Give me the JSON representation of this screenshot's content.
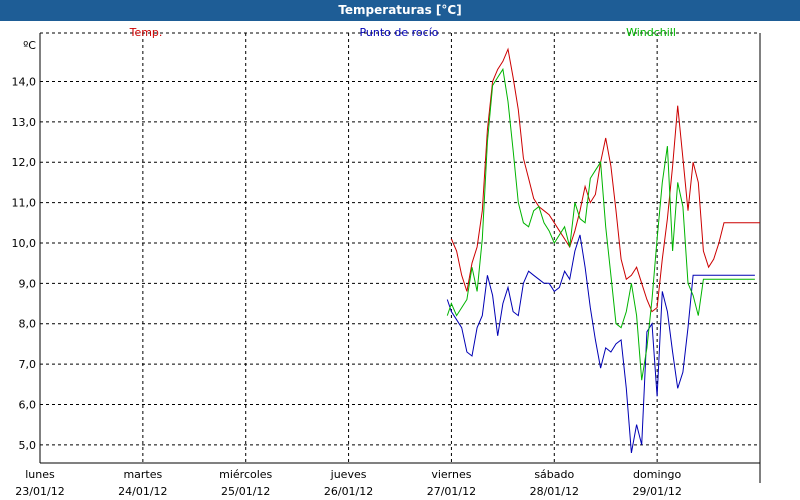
{
  "window": {
    "title": "Temperaturas [°C]"
  },
  "chart_data": {
    "type": "line",
    "title": "Temperaturas [°C]",
    "ylabel": "ºC",
    "ylim": [
      4.55,
      15.2
    ],
    "y_ticks": [
      "5,0",
      "6,0",
      "7,0",
      "8,0",
      "9,0",
      "10,0",
      "11,0",
      "12,0",
      "13,0",
      "14,0"
    ],
    "y_tick_values": [
      5,
      6,
      7,
      8,
      9,
      10,
      11,
      12,
      13,
      14
    ],
    "x_range_days": [
      0,
      7
    ],
    "x_ticks": [
      {
        "day": "lunes",
        "date": "23/01/12"
      },
      {
        "day": "martes",
        "date": "24/01/12"
      },
      {
        "day": "miércoles",
        "date": "25/01/12"
      },
      {
        "day": "jueves",
        "date": "26/01/12"
      },
      {
        "day": "viernes",
        "date": "27/01/12"
      },
      {
        "day": "sábado",
        "date": "28/01/12"
      },
      {
        "day": "domingo",
        "date": "29/01/12"
      }
    ],
    "grid": true,
    "legend_position": "top",
    "series": [
      {
        "name": "Temp.",
        "color": "#cc0000",
        "x": [
          4.0,
          4.05,
          4.1,
          4.15,
          4.2,
          4.25,
          4.3,
          4.35,
          4.4,
          4.45,
          4.5,
          4.55,
          4.6,
          4.65,
          4.7,
          4.75,
          4.8,
          4.85,
          4.9,
          4.95,
          5.0,
          5.05,
          5.1,
          5.15,
          5.2,
          5.25,
          5.3,
          5.35,
          5.4,
          5.45,
          5.5,
          5.55,
          5.6,
          5.65,
          5.7,
          5.75,
          5.8,
          5.85,
          5.9,
          5.95,
          6.0,
          6.05,
          6.1,
          6.15,
          6.2,
          6.25,
          6.3,
          6.35,
          6.4,
          6.45,
          6.5,
          6.55,
          6.6,
          6.65,
          6.7,
          6.75,
          6.8,
          6.85,
          6.9,
          6.95,
          7.0
        ],
        "y": [
          10.1,
          9.8,
          9.2,
          8.8,
          9.5,
          9.9,
          10.8,
          12.8,
          14.0,
          14.3,
          14.5,
          14.8,
          14.1,
          13.3,
          12.1,
          11.6,
          11.1,
          10.9,
          10.8,
          10.7,
          10.5,
          10.3,
          10.1,
          9.9,
          10.3,
          10.8,
          11.4,
          11.0,
          11.2,
          12.0,
          12.6,
          11.9,
          10.8,
          9.6,
          9.1,
          9.2,
          9.4,
          9.0,
          8.6,
          8.3,
          8.4,
          9.6,
          10.6,
          11.9,
          13.4,
          12.1,
          10.8,
          12.0,
          11.5,
          9.8,
          9.4,
          9.6,
          10.0,
          10.5,
          10.5,
          10.5,
          10.5,
          10.5,
          10.5,
          10.5,
          10.5
        ]
      },
      {
        "name": "Punto de rocío",
        "color": "#0000b4",
        "x": [
          3.96,
          4.0,
          4.05,
          4.1,
          4.15,
          4.2,
          4.25,
          4.3,
          4.35,
          4.4,
          4.45,
          4.5,
          4.55,
          4.6,
          4.65,
          4.7,
          4.75,
          4.8,
          4.85,
          4.9,
          4.95,
          5.0,
          5.05,
          5.1,
          5.15,
          5.2,
          5.25,
          5.3,
          5.35,
          5.4,
          5.45,
          5.5,
          5.55,
          5.6,
          5.65,
          5.7,
          5.75,
          5.8,
          5.85,
          5.9,
          5.95,
          6.0,
          6.05,
          6.1,
          6.15,
          6.2,
          6.25,
          6.3,
          6.35,
          6.4,
          6.45,
          6.5,
          6.55,
          6.6,
          6.65,
          6.7,
          6.75,
          6.8,
          6.85,
          6.9,
          6.95
        ],
        "y": [
          8.6,
          8.3,
          8.1,
          7.9,
          7.3,
          7.2,
          7.9,
          8.2,
          9.2,
          8.7,
          7.7,
          8.5,
          8.9,
          8.3,
          8.2,
          9.0,
          9.3,
          9.2,
          9.1,
          9.0,
          9.0,
          8.8,
          8.9,
          9.3,
          9.1,
          9.8,
          10.2,
          9.4,
          8.4,
          7.6,
          6.9,
          7.4,
          7.3,
          7.5,
          7.6,
          6.4,
          4.8,
          5.5,
          5.0,
          7.8,
          8.0,
          6.2,
          8.8,
          8.3,
          7.3,
          6.4,
          6.8,
          7.9,
          9.2,
          9.2,
          9.2,
          9.2,
          9.2,
          9.2,
          9.2,
          9.2,
          9.2,
          9.2,
          9.2,
          9.2,
          9.2
        ]
      },
      {
        "name": "Windchill",
        "color": "#00b400",
        "x": [
          3.96,
          4.0,
          4.05,
          4.1,
          4.15,
          4.2,
          4.25,
          4.3,
          4.35,
          4.4,
          4.45,
          4.5,
          4.55,
          4.6,
          4.65,
          4.7,
          4.75,
          4.8,
          4.85,
          4.9,
          4.95,
          5.0,
          5.05,
          5.1,
          5.15,
          5.2,
          5.25,
          5.3,
          5.35,
          5.4,
          5.45,
          5.5,
          5.55,
          5.6,
          5.65,
          5.7,
          5.75,
          5.8,
          5.85,
          5.9,
          5.95,
          6.0,
          6.05,
          6.1,
          6.15,
          6.2,
          6.25,
          6.3,
          6.35,
          6.4,
          6.45,
          6.5,
          6.55,
          6.6,
          6.65,
          6.7,
          6.75,
          6.8,
          6.85,
          6.9,
          6.95
        ],
        "y": [
          8.2,
          8.5,
          8.2,
          8.4,
          8.6,
          9.4,
          8.8,
          10.1,
          12.5,
          13.9,
          14.1,
          14.3,
          13.5,
          12.3,
          11.0,
          10.5,
          10.4,
          10.8,
          10.9,
          10.5,
          10.3,
          10.0,
          10.2,
          10.4,
          9.9,
          11.0,
          10.6,
          10.5,
          11.6,
          11.8,
          12.0,
          10.4,
          9.2,
          8.0,
          7.9,
          8.3,
          9.0,
          8.2,
          6.6,
          7.4,
          8.6,
          10.1,
          11.5,
          12.4,
          9.8,
          11.5,
          10.9,
          9.0,
          8.7,
          8.2,
          9.1,
          9.1,
          9.1,
          9.1,
          9.1,
          9.1,
          9.1,
          9.1,
          9.1,
          9.1,
          9.1
        ]
      }
    ]
  }
}
